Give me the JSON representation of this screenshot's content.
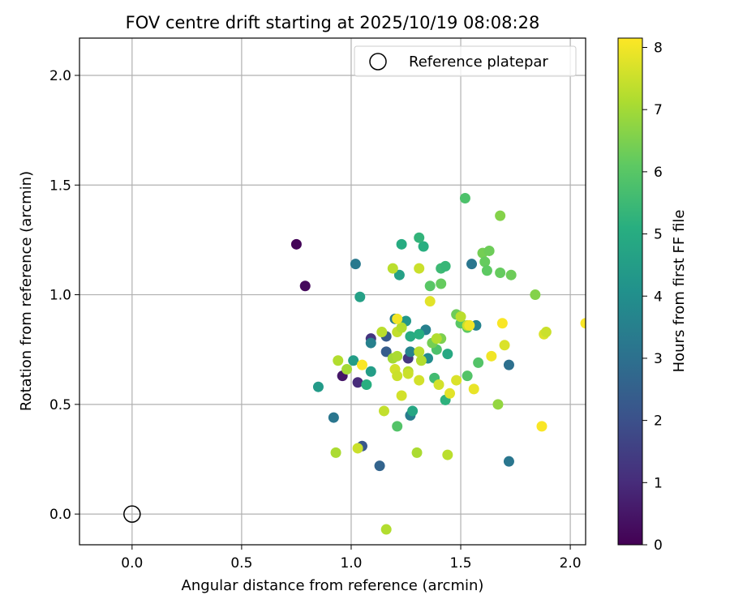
{
  "chart_data": {
    "type": "scatter",
    "title": "FOV centre drift starting at 2025/10/19 08:08:28",
    "xlabel": "Angular distance from reference (arcmin)",
    "ylabel": "Rotation from reference (arcmin)",
    "xlim": [
      -0.24,
      2.07
    ],
    "ylim": [
      -0.14,
      2.17
    ],
    "xticks": [
      "0.0",
      "0.5",
      "1.0",
      "1.5",
      "2.0"
    ],
    "yticks": [
      "0.0",
      "0.5",
      "1.0",
      "1.5",
      "2.0"
    ],
    "grid": true,
    "legend": {
      "position": "top-right",
      "label": "Reference platepar"
    },
    "reference": {
      "x": 0.0,
      "y": 0.0
    },
    "colorbar": {
      "label": "Hours from first FF file",
      "min": 0,
      "max": 8.15,
      "ticks": [
        "0",
        "1",
        "2",
        "3",
        "4",
        "5",
        "6",
        "7",
        "8"
      ],
      "colormap": "viridis"
    },
    "points": [
      {
        "x": 0.75,
        "y": 1.23,
        "h": 0.1
      },
      {
        "x": 0.79,
        "y": 1.04,
        "h": 0.2
      },
      {
        "x": 0.96,
        "y": 0.63,
        "h": 0.5
      },
      {
        "x": 1.03,
        "y": 0.6,
        "h": 1.0
      },
      {
        "x": 1.09,
        "y": 0.8,
        "h": 1.2
      },
      {
        "x": 1.26,
        "y": 0.71,
        "h": 1.3
      },
      {
        "x": 1.05,
        "y": 0.31,
        "h": 2.2
      },
      {
        "x": 1.13,
        "y": 0.22,
        "h": 2.6
      },
      {
        "x": 1.16,
        "y": 0.74,
        "h": 2.4
      },
      {
        "x": 1.16,
        "y": 0.81,
        "h": 2.3
      },
      {
        "x": 0.92,
        "y": 0.44,
        "h": 3.2
      },
      {
        "x": 1.02,
        "y": 1.14,
        "h": 3.3
      },
      {
        "x": 1.09,
        "y": 0.78,
        "h": 3.5
      },
      {
        "x": 1.2,
        "y": 0.89,
        "h": 3.4
      },
      {
        "x": 1.27,
        "y": 0.45,
        "h": 3.4
      },
      {
        "x": 1.27,
        "y": 0.74,
        "h": 3.6
      },
      {
        "x": 1.34,
        "y": 0.84,
        "h": 3.5
      },
      {
        "x": 1.55,
        "y": 1.14,
        "h": 3.2
      },
      {
        "x": 1.57,
        "y": 0.86,
        "h": 3.6
      },
      {
        "x": 1.72,
        "y": 0.68,
        "h": 3.0
      },
      {
        "x": 1.72,
        "y": 0.24,
        "h": 3.2
      },
      {
        "x": 1.35,
        "y": 0.71,
        "h": 3.9
      },
      {
        "x": 0.85,
        "y": 0.58,
        "h": 4.4
      },
      {
        "x": 1.01,
        "y": 0.7,
        "h": 4.5
      },
      {
        "x": 1.04,
        "y": 0.99,
        "h": 4.6
      },
      {
        "x": 1.09,
        "y": 0.65,
        "h": 4.5
      },
      {
        "x": 1.22,
        "y": 1.09,
        "h": 4.6
      },
      {
        "x": 1.25,
        "y": 0.88,
        "h": 4.3
      },
      {
        "x": 1.28,
        "y": 0.47,
        "h": 4.8
      },
      {
        "x": 1.33,
        "y": 1.22,
        "h": 5.1
      },
      {
        "x": 1.44,
        "y": 0.73,
        "h": 4.9
      },
      {
        "x": 1.07,
        "y": 0.59,
        "h": 5.1
      },
      {
        "x": 1.23,
        "y": 1.23,
        "h": 5.0
      },
      {
        "x": 1.31,
        "y": 1.26,
        "h": 5.3
      },
      {
        "x": 1.27,
        "y": 0.81,
        "h": 5.0
      },
      {
        "x": 1.31,
        "y": 0.82,
        "h": 5.1
      },
      {
        "x": 1.41,
        "y": 1.12,
        "h": 5.5
      },
      {
        "x": 1.43,
        "y": 1.13,
        "h": 5.4
      },
      {
        "x": 1.43,
        "y": 0.52,
        "h": 5.2
      },
      {
        "x": 1.38,
        "y": 0.62,
        "h": 5.6
      },
      {
        "x": 1.52,
        "y": 1.44,
        "h": 5.8
      },
      {
        "x": 1.53,
        "y": 0.63,
        "h": 5.9
      },
      {
        "x": 1.58,
        "y": 0.69,
        "h": 5.9
      },
      {
        "x": 1.21,
        "y": 0.4,
        "h": 5.9
      },
      {
        "x": 1.41,
        "y": 1.05,
        "h": 6.2
      },
      {
        "x": 1.36,
        "y": 1.04,
        "h": 6.0
      },
      {
        "x": 1.39,
        "y": 0.75,
        "h": 5.8
      },
      {
        "x": 1.5,
        "y": 0.87,
        "h": 6.0
      },
      {
        "x": 1.53,
        "y": 0.85,
        "h": 6.1
      },
      {
        "x": 1.6,
        "y": 1.19,
        "h": 6.4
      },
      {
        "x": 1.61,
        "y": 1.15,
        "h": 6.2
      },
      {
        "x": 1.62,
        "y": 1.11,
        "h": 6.1
      },
      {
        "x": 1.63,
        "y": 1.2,
        "h": 6.3
      },
      {
        "x": 1.68,
        "y": 1.1,
        "h": 6.2
      },
      {
        "x": 1.68,
        "y": 1.36,
        "h": 6.6
      },
      {
        "x": 1.73,
        "y": 1.09,
        "h": 6.3
      },
      {
        "x": 1.67,
        "y": 0.5,
        "h": 6.8
      },
      {
        "x": 1.84,
        "y": 1.0,
        "h": 6.6
      },
      {
        "x": 1.48,
        "y": 0.91,
        "h": 6.3
      },
      {
        "x": 1.41,
        "y": 0.8,
        "h": 6.5
      },
      {
        "x": 1.37,
        "y": 0.78,
        "h": 6.4
      },
      {
        "x": 0.93,
        "y": 0.28,
        "h": 7.1
      },
      {
        "x": 0.94,
        "y": 0.7,
        "h": 7.2
      },
      {
        "x": 0.98,
        "y": 0.66,
        "h": 7.0
      },
      {
        "x": 1.03,
        "y": 0.3,
        "h": 7.5
      },
      {
        "x": 1.14,
        "y": 0.83,
        "h": 7.3
      },
      {
        "x": 1.15,
        "y": 0.47,
        "h": 7.4
      },
      {
        "x": 1.19,
        "y": 1.12,
        "h": 7.3
      },
      {
        "x": 1.19,
        "y": 0.71,
        "h": 7.0
      },
      {
        "x": 1.2,
        "y": 0.66,
        "h": 7.6
      },
      {
        "x": 1.21,
        "y": 0.63,
        "h": 7.5
      },
      {
        "x": 1.21,
        "y": 0.72,
        "h": 7.1
      },
      {
        "x": 1.21,
        "y": 0.83,
        "h": 7.4
      },
      {
        "x": 1.23,
        "y": 0.85,
        "h": 7.2
      },
      {
        "x": 1.23,
        "y": 0.54,
        "h": 7.6
      },
      {
        "x": 1.26,
        "y": 0.65,
        "h": 7.2
      },
      {
        "x": 1.26,
        "y": 0.64,
        "h": 7.5
      },
      {
        "x": 1.3,
        "y": 0.28,
        "h": 7.1
      },
      {
        "x": 1.31,
        "y": 1.12,
        "h": 7.5
      },
      {
        "x": 1.31,
        "y": 0.61,
        "h": 7.6
      },
      {
        "x": 1.31,
        "y": 0.74,
        "h": 7.3
      },
      {
        "x": 1.32,
        "y": 0.7,
        "h": 7.2
      },
      {
        "x": 1.36,
        "y": 0.97,
        "h": 7.8
      },
      {
        "x": 1.4,
        "y": 0.59,
        "h": 7.6
      },
      {
        "x": 1.39,
        "y": 0.8,
        "h": 7.2
      },
      {
        "x": 1.44,
        "y": 0.27,
        "h": 7.3
      },
      {
        "x": 1.45,
        "y": 0.55,
        "h": 7.8
      },
      {
        "x": 1.48,
        "y": 0.61,
        "h": 7.7
      },
      {
        "x": 1.5,
        "y": 0.9,
        "h": 7.3
      },
      {
        "x": 1.53,
        "y": 0.86,
        "h": 7.5
      },
      {
        "x": 1.56,
        "y": 0.57,
        "h": 7.9
      },
      {
        "x": 1.7,
        "y": 0.77,
        "h": 7.7
      },
      {
        "x": 1.88,
        "y": 0.82,
        "h": 7.7
      },
      {
        "x": 1.89,
        "y": 0.83,
        "h": 7.5
      },
      {
        "x": 1.16,
        "y": -0.07,
        "h": 7.2
      },
      {
        "x": 1.05,
        "y": 0.68,
        "h": 8.1
      },
      {
        "x": 1.21,
        "y": 0.89,
        "h": 8.0
      },
      {
        "x": 1.54,
        "y": 0.86,
        "h": 8.0
      },
      {
        "x": 1.64,
        "y": 0.72,
        "h": 8.0
      },
      {
        "x": 1.69,
        "y": 0.87,
        "h": 8.1
      },
      {
        "x": 1.87,
        "y": 0.4,
        "h": 8.1
      },
      {
        "x": 2.07,
        "y": 0.87,
        "h": 8.1
      }
    ]
  }
}
